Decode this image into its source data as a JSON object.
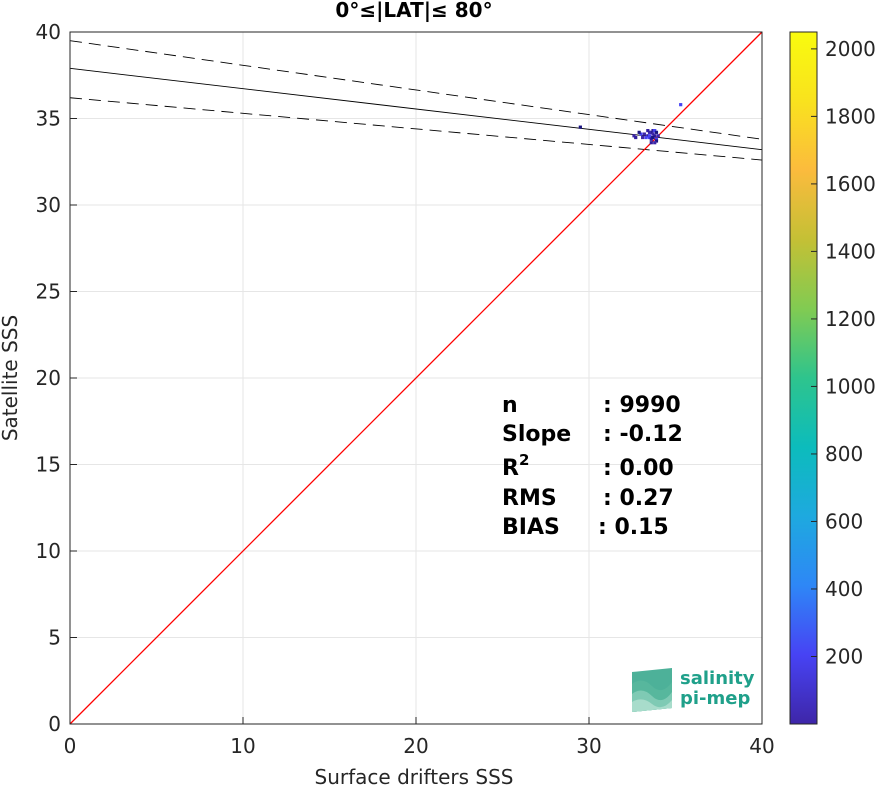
{
  "chart_data": {
    "type": "scatter",
    "title": "0°≤|LAT|≤ 80°",
    "xlabel": "Surface drifters SSS",
    "ylabel": "Satellite SSS",
    "xlim": [
      0,
      40
    ],
    "ylim": [
      0,
      40
    ],
    "xticks": [
      "0",
      "10",
      "20",
      "30",
      "40"
    ],
    "yticks": [
      "0",
      "5",
      "10",
      "15",
      "20",
      "25",
      "30",
      "35",
      "40"
    ],
    "grid": true,
    "series": [
      {
        "type": "density-scatter",
        "points": [
          [
            33.2,
            34.1
          ],
          [
            33.4,
            34.0
          ],
          [
            33.5,
            33.9
          ],
          [
            33.6,
            34.2
          ],
          [
            33.7,
            34.1
          ],
          [
            33.8,
            34.0
          ],
          [
            33.9,
            33.8
          ],
          [
            33.6,
            33.9
          ],
          [
            33.5,
            34.2
          ],
          [
            33.7,
            34.3
          ],
          [
            33.8,
            34.3
          ],
          [
            33.9,
            34.2
          ],
          [
            34.0,
            34.0
          ],
          [
            33.4,
            34.3
          ],
          [
            33.3,
            33.9
          ],
          [
            33.9,
            33.7
          ],
          [
            33.8,
            33.6
          ],
          [
            33.6,
            33.8
          ],
          [
            33.5,
            34.0
          ],
          [
            33.7,
            33.9
          ],
          [
            32.6,
            34.0
          ],
          [
            32.7,
            33.9
          ],
          [
            33.0,
            34.1
          ],
          [
            32.9,
            34.2
          ],
          [
            33.1,
            33.9
          ],
          [
            33.6,
            33.6
          ],
          [
            35.3,
            35.8
          ],
          [
            29.5,
            34.5
          ]
        ]
      },
      {
        "type": "line",
        "style": "solid",
        "color": "#000000",
        "x": [
          0,
          40
        ],
        "y": [
          37.9,
          33.2
        ]
      },
      {
        "type": "line",
        "style": "dashed",
        "color": "#000000",
        "x": [
          0,
          40
        ],
        "y": [
          39.5,
          33.8
        ]
      },
      {
        "type": "line",
        "style": "dashed",
        "color": "#000000",
        "x": [
          0,
          40
        ],
        "y": [
          36.2,
          32.6
        ]
      },
      {
        "type": "line",
        "style": "solid",
        "color": "#ff0000",
        "x": [
          0,
          40
        ],
        "y": [
          0,
          40
        ]
      }
    ],
    "colorbar": {
      "range": [
        0,
        2050
      ],
      "ticks": [
        "200",
        "400",
        "600",
        "800",
        "1000",
        "1200",
        "1400",
        "1600",
        "1800",
        "2000"
      ],
      "tick_values": [
        200,
        400,
        600,
        800,
        1000,
        1200,
        1400,
        1600,
        1800,
        2000
      ],
      "colormap": [
        "#3e26a8",
        "#4743f4",
        "#2e87f6",
        "#1ea9df",
        "#0cbcbc",
        "#2ec48d",
        "#81cb52",
        "#c4c035",
        "#fbbb3d",
        "#f9e21e",
        "#f9fb0e"
      ]
    },
    "stats": [
      {
        "label": "n",
        "value": ": 9990"
      },
      {
        "label": "Slope",
        "value": ": -0.12"
      },
      {
        "label": "R",
        "sup": "2",
        "value": ": 0.00"
      },
      {
        "label": "RMS",
        "value": ": 0.27"
      },
      {
        "label": "BIAS",
        "value": ": 0.15"
      }
    ]
  },
  "logo": {
    "line1": "salinity",
    "line2": "pi-mep"
  }
}
